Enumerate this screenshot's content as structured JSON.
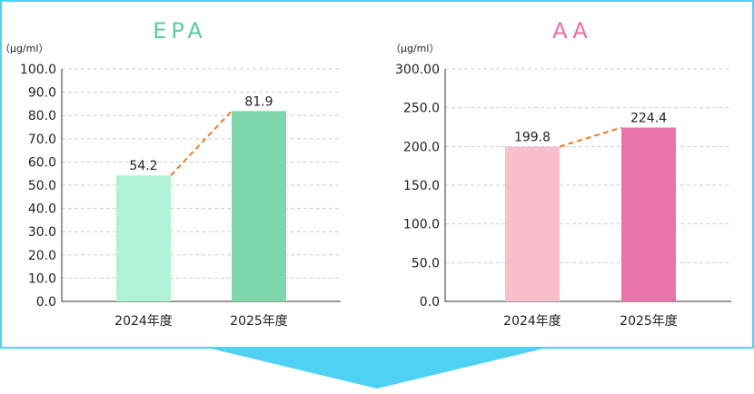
{
  "colors": {
    "frame": "#4fd1f4",
    "arrow": "#4fd1f4",
    "connector": "#f07c28",
    "grid": "#cccccc",
    "axis": "#333333",
    "text": "#222222"
  },
  "chart_data": [
    {
      "type": "bar",
      "title": "EPA",
      "title_color": "#5ccc97",
      "unit": "（μg/ml）",
      "categories": [
        "2024年度",
        "2025年度"
      ],
      "values": [
        54.2,
        81.9
      ],
      "value_labels": [
        "54.2",
        "81.9"
      ],
      "bar_colors": [
        "#aff2d8",
        "#80d7ab"
      ],
      "ylim": [
        0,
        100
      ],
      "yticks": [
        0,
        10,
        20,
        30,
        40,
        50,
        60,
        70,
        80,
        90,
        100
      ],
      "ytick_labels": [
        "0.0",
        "10.0",
        "20.0",
        "30.0",
        "40.0",
        "50.0",
        "60.0",
        "70.0",
        "80.0",
        "90.0",
        "100.0"
      ],
      "grid": true,
      "connector": "dashed"
    },
    {
      "type": "bar",
      "title": "AA",
      "title_color": "#e970a6",
      "unit": "（μg/ml）",
      "categories": [
        "2024年度",
        "2025年度"
      ],
      "values": [
        199.8,
        224.4
      ],
      "value_labels": [
        "199.8",
        "224.4"
      ],
      "bar_colors": [
        "#f6bfcb",
        "#e874a9"
      ],
      "ylim": [
        0,
        300
      ],
      "yticks": [
        0,
        50,
        100,
        150,
        200,
        250,
        300
      ],
      "ytick_labels": [
        "0.0",
        "50.0",
        "100.0",
        "150.0",
        "200.0",
        "250.0",
        "300.00"
      ],
      "grid": true,
      "connector": "dashed"
    }
  ]
}
